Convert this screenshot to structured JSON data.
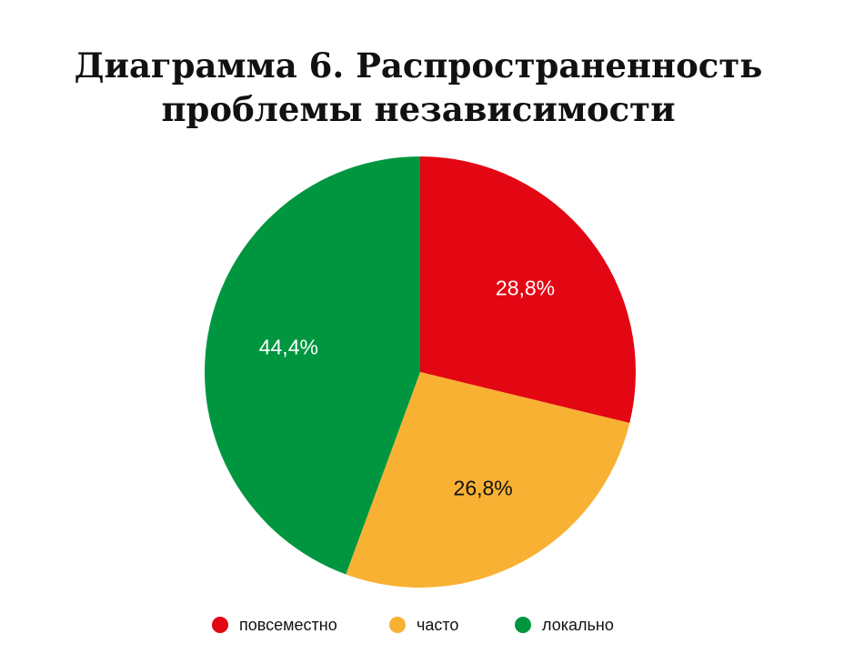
{
  "title": {
    "line1": "Диаграмма 6. Распространенность",
    "line2": "проблемы независимости"
  },
  "chart_data": {
    "type": "pie",
    "title": "Диаграмма 6. Распространенность проблемы независимости",
    "start_angle_deg": 0,
    "direction": "clockwise",
    "legend_position": "bottom",
    "slices": [
      {
        "label": "повсеместно",
        "value": 28.8,
        "display": "28,8%",
        "color": "#e30613",
        "label_color": "#ffffff"
      },
      {
        "label": "часто",
        "value": 26.8,
        "display": "26,8%",
        "color": "#f8b133",
        "label_color": "#111111"
      },
      {
        "label": "локально",
        "value": 44.4,
        "display": "44,4%",
        "color": "#009640",
        "label_color": "#ffffff"
      }
    ]
  }
}
